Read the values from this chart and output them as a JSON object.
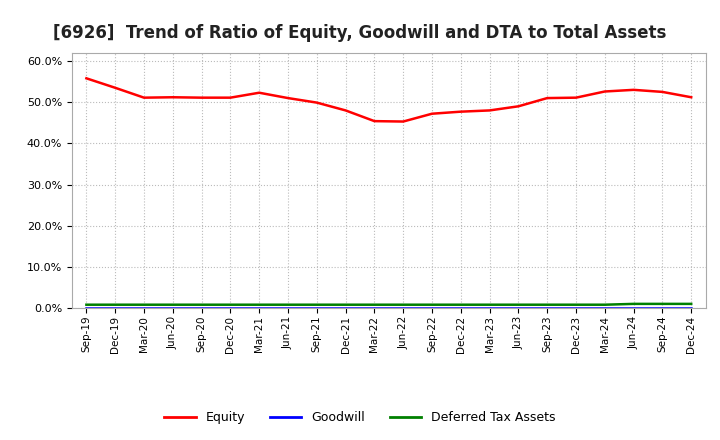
{
  "title": "[6926]  Trend of Ratio of Equity, Goodwill and DTA to Total Assets",
  "x_labels": [
    "Sep-19",
    "Dec-19",
    "Mar-20",
    "Jun-20",
    "Sep-20",
    "Dec-20",
    "Mar-21",
    "Jun-21",
    "Sep-21",
    "Dec-21",
    "Mar-22",
    "Jun-22",
    "Sep-22",
    "Dec-22",
    "Mar-23",
    "Jun-23",
    "Sep-23",
    "Dec-23",
    "Mar-24",
    "Jun-24",
    "Sep-24",
    "Dec-24"
  ],
  "equity": [
    0.558,
    0.535,
    0.511,
    0.512,
    0.511,
    0.511,
    0.523,
    0.51,
    0.499,
    0.48,
    0.454,
    0.453,
    0.472,
    0.477,
    0.48,
    0.49,
    0.51,
    0.511,
    0.526,
    0.53,
    0.525,
    0.512
  ],
  "goodwill": [
    0.0,
    0.0,
    0.0,
    0.0,
    0.0,
    0.0,
    0.0,
    0.0,
    0.0,
    0.0,
    0.0,
    0.0,
    0.0,
    0.0,
    0.0,
    0.0,
    0.0,
    0.0,
    0.0,
    0.0,
    0.0,
    0.0
  ],
  "dta": [
    0.008,
    0.008,
    0.008,
    0.008,
    0.008,
    0.008,
    0.008,
    0.008,
    0.008,
    0.008,
    0.008,
    0.008,
    0.008,
    0.008,
    0.008,
    0.008,
    0.008,
    0.008,
    0.008,
    0.01,
    0.01,
    0.01
  ],
  "equity_color": "#FF0000",
  "goodwill_color": "#0000FF",
  "dta_color": "#008000",
  "ylim": [
    0.0,
    0.62
  ],
  "yticks": [
    0.0,
    0.1,
    0.2,
    0.3,
    0.4,
    0.5,
    0.6
  ],
  "background_color": "#FFFFFF",
  "plot_bg_color": "#FFFFFF",
  "grid_color": "#AAAAAA",
  "title_fontsize": 12,
  "legend_labels": [
    "Equity",
    "Goodwill",
    "Deferred Tax Assets"
  ]
}
